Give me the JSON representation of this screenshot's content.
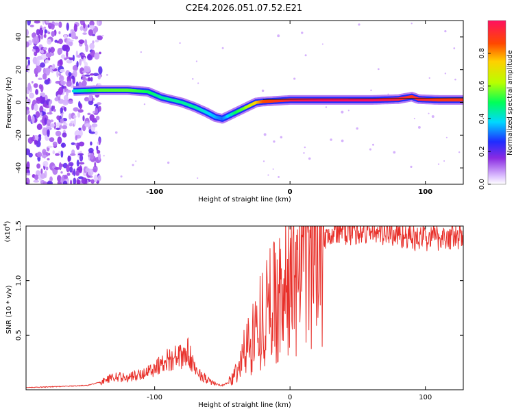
{
  "title": "C2E4.2026.051.07.52.E21",
  "chart_data": [
    {
      "type": "heatmap",
      "name": "spectrogram",
      "xlabel": "Height of straight line (km)",
      "ylabel": "Frequency (Hz)",
      "xlim": [
        -195,
        128
      ],
      "ylim": [
        -50,
        50
      ],
      "xticks": [
        -100,
        0,
        100
      ],
      "xtick_labels": [
        "-100",
        "0",
        "100"
      ],
      "yticks": [
        -40,
        -20,
        0,
        20,
        40
      ],
      "ytick_labels": [
        "-40",
        "-20",
        "0",
        "20",
        "40"
      ],
      "colorbar": {
        "label": "Normalized spectral amplitude",
        "range": [
          0,
          1
        ],
        "ticks": [
          0,
          0.2,
          0.4,
          0.6,
          0.8
        ],
        "tick_labels": [
          "0.0",
          "0.2",
          "0.4",
          "0.6",
          "0.8"
        ]
      },
      "ridge": {
        "x": [
          -160,
          -140,
          -120,
          -105,
          -95,
          -80,
          -70,
          -62,
          -55,
          -50,
          -45,
          -40,
          -35,
          -30,
          -25,
          -20,
          -10,
          0,
          20,
          40,
          60,
          80,
          90,
          95,
          110,
          128
        ],
        "y": [
          7,
          7.5,
          7.5,
          6.5,
          3,
          0,
          -3,
          -6,
          -9,
          -10,
          -8,
          -6,
          -4,
          -2,
          0,
          0.5,
          1,
          1.5,
          1.5,
          1.5,
          1.5,
          2,
          3.5,
          2,
          1.5,
          1.5
        ],
        "amplitude": [
          0.4,
          0.55,
          0.55,
          0.5,
          0.45,
          0.45,
          0.45,
          0.4,
          0.35,
          0.3,
          0.4,
          0.5,
          0.55,
          0.65,
          0.75,
          0.85,
          0.9,
          0.95,
          1.0,
          1.0,
          1.0,
          0.95,
          0.9,
          0.95,
          0.9,
          0.9
        ]
      },
      "noise_region": {
        "x": [
          -195,
          -140
        ],
        "y": [
          -50,
          50
        ],
        "amplitude": 0.15
      }
    },
    {
      "type": "line",
      "name": "snr",
      "xlabel": "Height of straight line (km)",
      "ylabel": "SNR (10 * v/v)",
      "y_multiplier": "(x10",
      "y_multiplier_exp": "4",
      "y_multiplier_close": ")",
      "xlim": [
        -195,
        128
      ],
      "ylim": [
        0,
        15000
      ],
      "xticks": [
        -100,
        0,
        100
      ],
      "xtick_labels": [
        "-100",
        "0",
        "100"
      ],
      "yticks": [
        5000,
        10000,
        15000
      ],
      "ytick_labels": [
        "0.5",
        "1.0",
        "1.5"
      ],
      "series": [
        {
          "name": "SNR",
          "color": "#e8302a",
          "x": [
            -195,
            -170,
            -150,
            -140,
            -130,
            -120,
            -110,
            -100,
            -90,
            -80,
            -75,
            -70,
            -60,
            -55,
            -50,
            -45,
            -40,
            -35,
            -30,
            -25,
            -20,
            -15,
            -10,
            -5,
            0,
            10,
            20,
            25,
            30,
            40,
            50,
            60,
            70,
            80,
            85,
            90,
            100,
            110,
            120,
            128
          ],
          "y": [
            200,
            300,
            400,
            700,
            1200,
            1100,
            1400,
            2000,
            2800,
            3000,
            3400,
            1800,
            800,
            500,
            400,
            700,
            1500,
            3000,
            4500,
            5500,
            6800,
            7800,
            8500,
            9000,
            9700,
            11000,
            12800,
            14000,
            14400,
            14500,
            14500,
            14500,
            14400,
            14200,
            14300,
            13800,
            13900,
            14000,
            14000,
            13900
          ]
        }
      ]
    }
  ]
}
